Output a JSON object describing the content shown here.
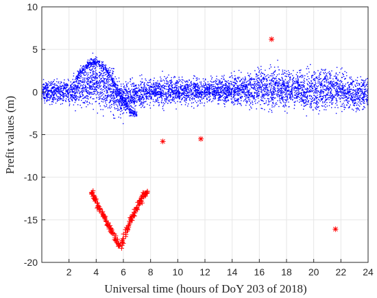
{
  "chart_data": {
    "type": "scatter",
    "title": "",
    "xlabel": "Universal time (hours of DoY 203 of 2018)",
    "ylabel": "Prefit values (m)",
    "xlim": [
      0,
      24
    ],
    "ylim": [
      -20,
      10
    ],
    "grid": true,
    "xticks": [
      "2",
      "4",
      "6",
      "8",
      "10",
      "12",
      "14",
      "16",
      "18",
      "20",
      "22",
      "24"
    ],
    "yticks": [
      "-20",
      "-15",
      "-10",
      "-5",
      "0",
      "5",
      "10"
    ],
    "series": [
      {
        "color": "#0000ff",
        "marker": "dot",
        "description_points": "dense noise band around 0 across 0-24 h",
        "band": [
          [
            0,
            -1.5,
            1.5
          ],
          [
            1,
            -1.5,
            1.5
          ],
          [
            2,
            -1.6,
            1.6
          ],
          [
            3,
            -2.0,
            3.0
          ],
          [
            3.8,
            -2.0,
            4.2
          ],
          [
            4.5,
            -2.2,
            3.6
          ],
          [
            5,
            -2.5,
            2.8
          ],
          [
            5.5,
            -3.0,
            2.0
          ],
          [
            6,
            -3.2,
            1.6
          ],
          [
            6.5,
            -2.5,
            1.6
          ],
          [
            7,
            -2.0,
            1.6
          ],
          [
            8,
            -1.6,
            1.6
          ],
          [
            9,
            -1.8,
            2.2
          ],
          [
            10,
            -1.6,
            1.8
          ],
          [
            12,
            -1.5,
            1.6
          ],
          [
            14,
            -1.6,
            2.0
          ],
          [
            16,
            -2.0,
            3.0
          ],
          [
            17,
            -2.2,
            3.2
          ],
          [
            18,
            -2.0,
            3.0
          ],
          [
            19,
            -2.2,
            2.8
          ],
          [
            20,
            -2.5,
            2.6
          ],
          [
            21,
            -2.2,
            3.0
          ],
          [
            22,
            -2.0,
            2.6
          ],
          [
            23,
            -2.6,
            2.0
          ],
          [
            24,
            -2.0,
            1.8
          ]
        ],
        "arc": [
          [
            2.5,
            1.5
          ],
          [
            3.0,
            2.6
          ],
          [
            3.5,
            3.4
          ],
          [
            4.0,
            3.6
          ],
          [
            4.5,
            3.0
          ],
          [
            5.0,
            2.0
          ],
          [
            5.5,
            0.5
          ],
          [
            6.0,
            -1.0
          ],
          [
            6.5,
            -2.2
          ],
          [
            7.0,
            -2.6
          ]
        ]
      },
      {
        "color": "#ff0000",
        "marker": "plus",
        "v_left": [
          [
            3.7,
            -11.8
          ],
          [
            3.9,
            -12.6
          ],
          [
            4.1,
            -13.2
          ],
          [
            4.3,
            -13.8
          ],
          [
            4.5,
            -14.4
          ],
          [
            4.7,
            -15.0
          ],
          [
            4.9,
            -15.6
          ],
          [
            5.1,
            -16.2
          ],
          [
            5.3,
            -16.9
          ],
          [
            5.5,
            -17.5
          ],
          [
            5.7,
            -18.2
          ]
        ],
        "v_right": [
          [
            5.8,
            -18.3
          ],
          [
            6.0,
            -17.2
          ],
          [
            6.2,
            -16.4
          ],
          [
            6.4,
            -15.6
          ],
          [
            6.6,
            -14.9
          ],
          [
            6.8,
            -14.2
          ],
          [
            7.0,
            -13.6
          ],
          [
            7.2,
            -13.0
          ],
          [
            7.4,
            -12.4
          ],
          [
            7.6,
            -11.9
          ],
          [
            7.8,
            -11.6
          ]
        ]
      },
      {
        "color": "#ff0000",
        "marker": "star",
        "points": [
          [
            8.9,
            -5.8
          ],
          [
            11.7,
            -5.5
          ],
          [
            16.9,
            6.2
          ],
          [
            21.6,
            -16.1
          ]
        ]
      }
    ]
  }
}
